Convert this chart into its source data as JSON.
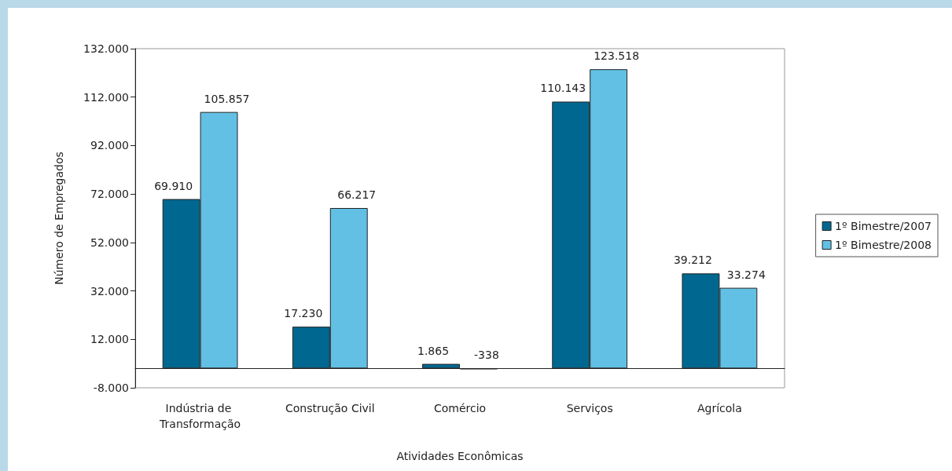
{
  "chart_data": {
    "type": "bar",
    "xlabel": "Atividades Econômicas",
    "ylabel": "Número de Empregados",
    "categories": [
      "Indústria de Transformação",
      "Construção Civil",
      "Comércio",
      "Serviços",
      "Agrícola"
    ],
    "series": [
      {
        "name": "1º Bimestre/2007",
        "color": "#006890",
        "values": [
          69910,
          17230,
          1865,
          110143,
          39212
        ],
        "value_labels": [
          "69.910",
          "17.230",
          "1.865",
          "110.143",
          "39.212"
        ]
      },
      {
        "name": "1º Bimestre/2008",
        "color": "#62c0e4",
        "values": [
          105857,
          66217,
          -338,
          123518,
          33274
        ],
        "value_labels": [
          "105.857",
          "66.217",
          "-338",
          "123.518",
          "33.274"
        ]
      }
    ],
    "ylim": [
      -8000,
      132000
    ],
    "yticks": [
      {
        "value": -8000,
        "label": "-8.000"
      },
      {
        "value": 12000,
        "label": "12.000"
      },
      {
        "value": 32000,
        "label": "32.000"
      },
      {
        "value": 52000,
        "label": "52.000"
      },
      {
        "value": 72000,
        "label": "72.000"
      },
      {
        "value": 92000,
        "label": "92.000"
      },
      {
        "value": 112000,
        "label": "112.000"
      },
      {
        "value": 132000,
        "label": "132.000"
      }
    ],
    "grid": false,
    "legend": "right"
  }
}
